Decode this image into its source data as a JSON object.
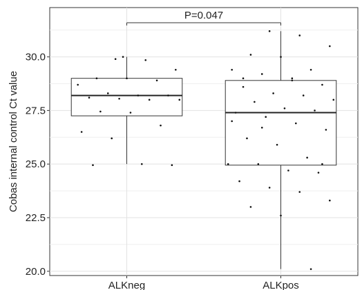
{
  "chart_data": {
    "type": "boxplot",
    "ylabel": "Cobas internal control Ct value",
    "xlabel": "",
    "ylim": [
      19.8,
      32.3
    ],
    "yticks": [
      20.0,
      22.5,
      25.0,
      27.5,
      30.0
    ],
    "ytick_labels": [
      "20.0",
      "22.5",
      "25.0",
      "27.5",
      "30.0"
    ],
    "categories": [
      "ALKneg",
      "ALKpos"
    ],
    "annotation": "P=0.047",
    "grid": true,
    "boxes": [
      {
        "category": "ALKneg",
        "min": 25.0,
        "q1": 27.25,
        "median": 28.2,
        "q3": 29.0,
        "max": 30.0,
        "points": [
          29.9,
          29.85,
          29.4,
          29.0,
          29.0,
          28.9,
          28.7,
          28.3,
          28.2,
          28.2,
          28.1,
          28.05,
          28.0,
          28.0,
          27.45,
          27.4,
          26.8,
          26.5,
          26.2,
          25.0,
          24.95,
          24.95,
          30.0
        ]
      },
      {
        "category": "ALKpos",
        "min": 20.1,
        "q1": 24.95,
        "median": 27.4,
        "q3": 28.9,
        "max": 31.2,
        "points": [
          31.2,
          31.0,
          30.5,
          30.1,
          30.0,
          29.4,
          29.4,
          29.2,
          29.0,
          28.7,
          28.6,
          28.3,
          28.2,
          28.0,
          27.9,
          27.6,
          27.5,
          27.4,
          27.2,
          26.9,
          26.6,
          26.2,
          25.9,
          25.3,
          25.0,
          25.0,
          24.7,
          24.6,
          24.2,
          23.9,
          23.7,
          23.3,
          23.0,
          22.6,
          20.1,
          27.0,
          26.7,
          28.9,
          25.0,
          29.0
        ]
      }
    ]
  }
}
